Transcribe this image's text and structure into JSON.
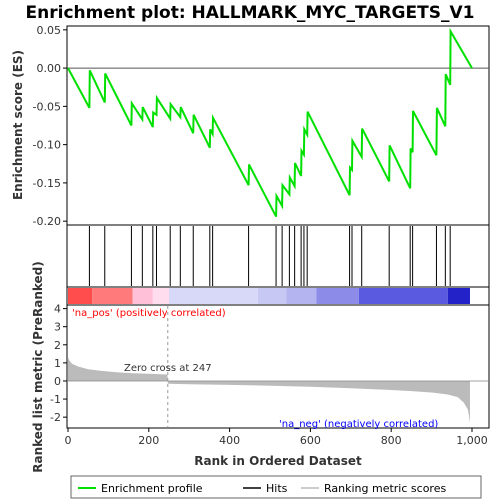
{
  "title": "Enrichment plot: HALLMARK_MYC_TARGETS_V1",
  "colors": {
    "es_line": "#00e000",
    "hit": "#000000",
    "metric_fill": "#bbbbbb",
    "pos_text": "#ff0000",
    "neg_text": "#0000ff",
    "zero_line": "#aaaaaa"
  },
  "chart_data": [
    {
      "type": "line",
      "name": "enrichment-score",
      "ylabel": "Enrichment score (ES)",
      "ylim": [
        -0.205,
        0.055
      ],
      "yticks": [
        0.05,
        0.0,
        -0.05,
        -0.1,
        -0.15,
        -0.2
      ],
      "ytick_labels": [
        "0.05",
        "0.00",
        "-0.05",
        "-0.10",
        "-0.15",
        "-0.20"
      ],
      "xlim": [
        0,
        1000
      ],
      "grid": false,
      "series": [
        {
          "name": "Enrichment profile",
          "x": [
            0,
            53,
            54,
            91,
            92,
            157,
            158,
            184,
            185,
            210,
            211,
            219,
            220,
            253,
            254,
            278,
            279,
            310,
            311,
            351,
            352,
            358,
            359,
            447,
            448,
            515,
            516,
            530,
            531,
            548,
            549,
            561,
            562,
            577,
            578,
            584,
            585,
            592,
            593,
            697,
            698,
            703,
            704,
            727,
            728,
            795,
            796,
            847,
            848,
            853,
            854,
            912,
            913,
            934,
            935,
            946,
            947,
            1000
          ],
          "y": [
            0.0,
            -0.052,
            -0.003,
            -0.045,
            -0.007,
            -0.075,
            -0.046,
            -0.067,
            -0.051,
            -0.077,
            -0.058,
            -0.061,
            -0.039,
            -0.066,
            -0.047,
            -0.064,
            -0.051,
            -0.085,
            -0.061,
            -0.104,
            -0.08,
            -0.086,
            -0.065,
            -0.153,
            -0.126,
            -0.194,
            -0.167,
            -0.18,
            -0.153,
            -0.165,
            -0.143,
            -0.154,
            -0.124,
            -0.141,
            -0.108,
            -0.113,
            -0.08,
            -0.087,
            -0.057,
            -0.166,
            -0.13,
            -0.133,
            -0.095,
            -0.116,
            -0.079,
            -0.148,
            -0.101,
            -0.157,
            -0.105,
            -0.11,
            -0.056,
            -0.114,
            -0.052,
            -0.076,
            -0.008,
            -0.022,
            0.048,
            0.0
          ]
        }
      ]
    },
    {
      "type": "scatter",
      "name": "hits",
      "xlim": [
        0,
        1000
      ],
      "x": [
        53,
        91,
        157,
        184,
        210,
        219,
        253,
        278,
        310,
        351,
        358,
        447,
        515,
        530,
        548,
        561,
        577,
        584,
        592,
        697,
        703,
        727,
        795,
        847,
        853,
        912,
        934,
        946
      ]
    },
    {
      "type": "heatmap",
      "name": "rank-color-bar",
      "xlim": [
        0,
        1000
      ],
      "segments": [
        {
          "x0": 0,
          "x1": 60,
          "color": "#ff4d4d"
        },
        {
          "x0": 60,
          "x1": 160,
          "color": "#ff7a7a"
        },
        {
          "x0": 160,
          "x1": 210,
          "color": "#ffc0d8"
        },
        {
          "x0": 210,
          "x1": 250,
          "color": "#ffdcee"
        },
        {
          "x0": 250,
          "x1": 470,
          "color": "#d8d8f8"
        },
        {
          "x0": 470,
          "x1": 540,
          "color": "#c8c8f4"
        },
        {
          "x0": 540,
          "x1": 615,
          "color": "#b4b4f0"
        },
        {
          "x0": 615,
          "x1": 720,
          "color": "#8c8ce8"
        },
        {
          "x0": 720,
          "x1": 940,
          "color": "#5a5ae0"
        },
        {
          "x0": 940,
          "x1": 995,
          "color": "#2222c8"
        }
      ]
    },
    {
      "type": "area",
      "name": "ranked-list-metric",
      "ylabel": "Ranked list metric (PreRanked)",
      "xlabel": "Rank in Ordered Dataset",
      "ylim": [
        -2.6,
        4.2
      ],
      "yticks": [
        4,
        3,
        2,
        1,
        0,
        -1,
        -2
      ],
      "ytick_labels": [
        "4",
        "3",
        "2",
        "1",
        "0",
        "-1",
        "-2"
      ],
      "xlim": [
        0,
        1000
      ],
      "xticks": [
        0,
        200,
        400,
        600,
        800,
        1000
      ],
      "xtick_labels": [
        "0",
        "200",
        "400",
        "600",
        "800",
        "1,000"
      ],
      "x": [
        0,
        3,
        10,
        25,
        50,
        80,
        120,
        160,
        200,
        246,
        247,
        300,
        400,
        500,
        600,
        700,
        800,
        850,
        900,
        940,
        965,
        980,
        990,
        995
      ],
      "y": [
        1.3,
        1.15,
        0.95,
        0.8,
        0.65,
        0.56,
        0.48,
        0.43,
        0.4,
        0.36,
        -0.15,
        -0.18,
        -0.22,
        -0.26,
        -0.32,
        -0.4,
        -0.5,
        -0.56,
        -0.64,
        -0.75,
        -0.9,
        -1.2,
        -1.6,
        -2.3
      ],
      "zero_cross_label": "Zero cross at 247",
      "zero_cross": 247,
      "pos_label": "'na_pos' (positively correlated)",
      "neg_label": "'na_neg' (negatively correlated)"
    }
  ],
  "legend": {
    "items": [
      {
        "label": "Enrichment profile",
        "kind": "line",
        "color": "#00e000"
      },
      {
        "label": "Hits",
        "kind": "line",
        "color": "#000000"
      },
      {
        "label": "Ranking metric scores",
        "kind": "line",
        "color": "#bbbbbb"
      }
    ]
  }
}
